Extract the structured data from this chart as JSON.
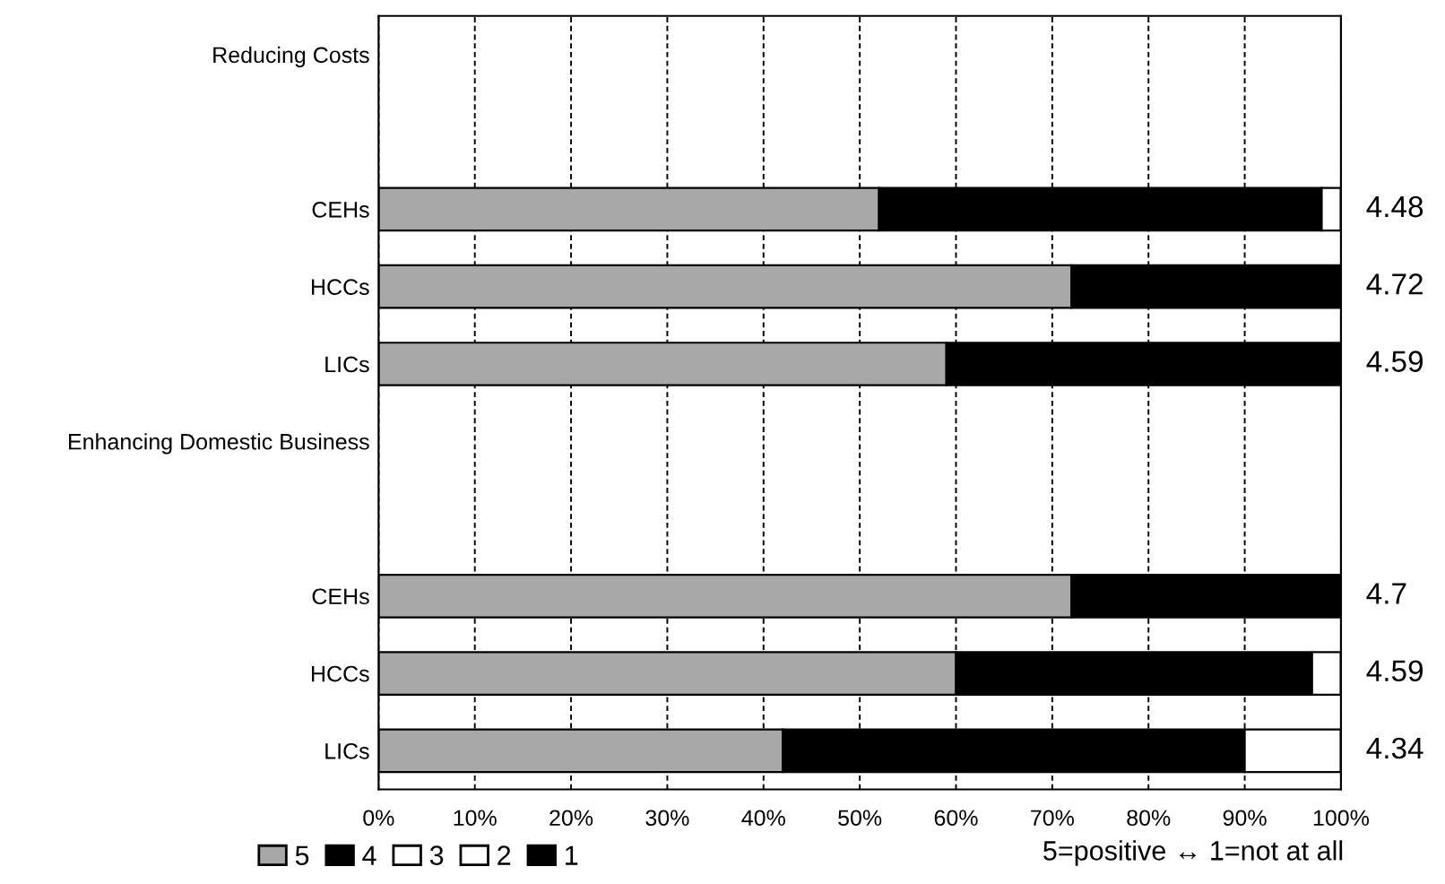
{
  "chart_data": {
    "type": "bar",
    "orientation": "horizontal",
    "stacked": true,
    "categories": [
      "Reducing Costs",
      null,
      "CEHs",
      "HCCs",
      "LICs",
      "Enhancing Domestic Business",
      null,
      "CEHs",
      "HCCs",
      "LICs"
    ],
    "series": [
      {
        "name": "5",
        "color": "#a8a8a8",
        "values": [
          null,
          null,
          52,
          72,
          59,
          null,
          null,
          72,
          60,
          42
        ]
      },
      {
        "name": "4",
        "color": "#000000",
        "values": [
          null,
          null,
          46,
          28,
          41,
          null,
          null,
          28,
          37,
          48
        ]
      },
      {
        "name": "3",
        "color": "#ffffff",
        "values": [
          null,
          null,
          2,
          0,
          0,
          null,
          null,
          0,
          3,
          10
        ]
      },
      {
        "name": "2",
        "color": "#ffffff",
        "values": [
          null,
          null,
          0,
          0,
          0,
          null,
          null,
          0,
          0,
          0
        ]
      },
      {
        "name": "1",
        "color": "#000000",
        "values": [
          null,
          null,
          0,
          0,
          0,
          null,
          null,
          0,
          0,
          0
        ]
      }
    ],
    "value_labels": [
      null,
      null,
      "4.48",
      "4.72",
      "4.59",
      null,
      null,
      "4.7",
      "4.59",
      "4.34"
    ],
    "annotations": [
      "5=positive ↔ 1=not at all"
    ],
    "xlim": [
      0,
      100
    ],
    "xticks": [
      {
        "value": 0,
        "label": "0%"
      },
      {
        "value": 10,
        "label": "10%"
      },
      {
        "value": 20,
        "label": "20%"
      },
      {
        "value": 30,
        "label": "30%"
      },
      {
        "value": 40,
        "label": "40%"
      },
      {
        "value": 50,
        "label": "50%"
      },
      {
        "value": 60,
        "label": "60%"
      },
      {
        "value": 70,
        "label": "70%"
      },
      {
        "value": 80,
        "label": "80%"
      },
      {
        "value": 90,
        "label": "90%"
      },
      {
        "value": 100,
        "label": "100%"
      }
    ],
    "grid": "x",
    "legend": "bottom left"
  }
}
